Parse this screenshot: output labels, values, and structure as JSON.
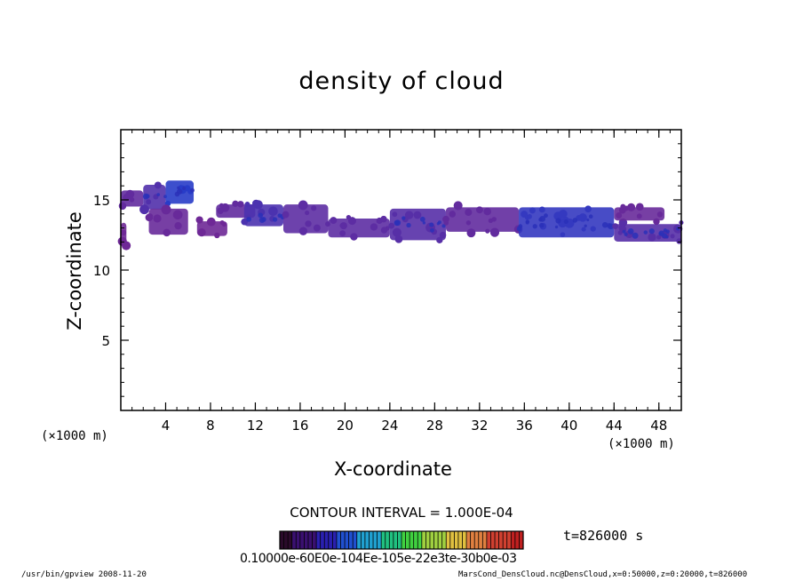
{
  "chart_data": {
    "type": "heatmap",
    "title": "density of cloud",
    "xlabel": "X-coordinate",
    "ylabel": "Z-coordinate",
    "x_unit_label": "(×1000 m)",
    "xlim": [
      0,
      50
    ],
    "ylim": [
      0,
      20
    ],
    "x_ticks": [
      4,
      8,
      12,
      16,
      20,
      24,
      28,
      32,
      36,
      40,
      44,
      48
    ],
    "y_ticks": [
      5,
      10,
      15
    ],
    "contour_interval_text": "CONTOUR INTERVAL = 1.000E-04",
    "time_label": "t=826000 s",
    "colorbar_tick_text": "0.10000e-60E0e-104Ee-105e-22e3te-30b0e-03",
    "colorbar_colors": [
      "#2a0a2a",
      "#3a1070",
      "#2a20b0",
      "#2050d0",
      "#20a0d0",
      "#20c080",
      "#40d040",
      "#a0d040",
      "#e0c040",
      "#e08040",
      "#d04030",
      "#c02020"
    ],
    "cloud_regions": [
      {
        "x": [
          0,
          2
        ],
        "z": [
          14.4,
          15.8
        ],
        "density": 0.00012
      },
      {
        "x": [
          2,
          4
        ],
        "z": [
          14.2,
          16.2
        ],
        "density": 0.00015
      },
      {
        "x": [
          4,
          6.5
        ],
        "z": [
          14.6,
          16.5
        ],
        "density": 0.00022
      },
      {
        "x": [
          0,
          0.5
        ],
        "z": [
          11.6,
          13.5
        ],
        "density": 0.0001
      },
      {
        "x": [
          2.5,
          6
        ],
        "z": [
          12.4,
          14.5
        ],
        "density": 0.00011
      },
      {
        "x": [
          6.8,
          9.5
        ],
        "z": [
          12.3,
          13.6
        ],
        "density": 0.0001
      },
      {
        "x": [
          8.5,
          12
        ],
        "z": [
          13.6,
          14.8
        ],
        "density": 0.00012
      },
      {
        "x": [
          11,
          14.5
        ],
        "z": [
          13.0,
          14.8
        ],
        "density": 0.00016
      },
      {
        "x": [
          14.5,
          18.5
        ],
        "z": [
          12.5,
          14.8
        ],
        "density": 0.00013
      },
      {
        "x": [
          18.5,
          24
        ],
        "z": [
          12.2,
          13.8
        ],
        "density": 0.00013
      },
      {
        "x": [
          24,
          29
        ],
        "z": [
          12.0,
          14.5
        ],
        "density": 0.00014
      },
      {
        "x": [
          29,
          35.5
        ],
        "z": [
          12.6,
          14.6
        ],
        "density": 0.00012
      },
      {
        "x": [
          35.5,
          44
        ],
        "z": [
          12.2,
          14.6
        ],
        "density": 0.0002
      },
      {
        "x": [
          44,
          50
        ],
        "z": [
          11.9,
          13.4
        ],
        "density": 0.00014
      },
      {
        "x": [
          44,
          48.5
        ],
        "z": [
          13.4,
          14.6
        ],
        "density": 0.00011
      }
    ]
  },
  "footer": {
    "left": "/usr/bin/gpview  2008-11-20",
    "right": "MarsCond_DensCloud.nc@DensCloud,x=0:50000,z=0:20000,t=826000"
  }
}
